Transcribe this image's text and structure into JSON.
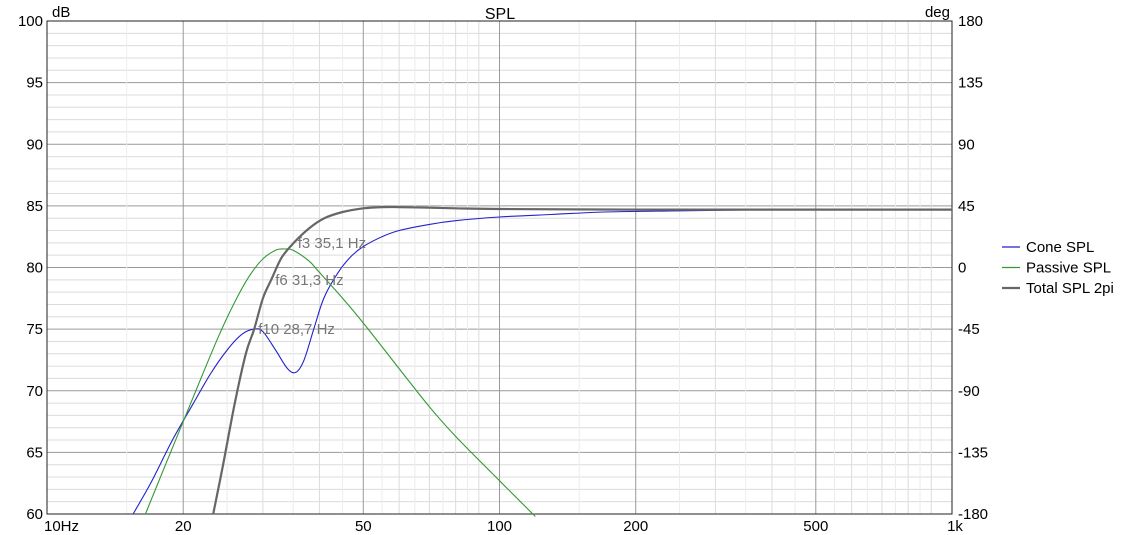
{
  "chart_data": {
    "type": "line",
    "title": "SPL",
    "ylabel_left": "dB",
    "ylabel_right": "deg",
    "x_scale": "log",
    "xlim": [
      10,
      1000
    ],
    "ylim": [
      60,
      100
    ],
    "ylim_right": [
      -180,
      180
    ],
    "x_ticks": [
      {
        "value": 10,
        "label": "10Hz"
      },
      {
        "value": 20,
        "label": "20"
      },
      {
        "value": 50,
        "label": "50"
      },
      {
        "value": 100,
        "label": "100"
      },
      {
        "value": 200,
        "label": "200"
      },
      {
        "value": 500,
        "label": "500"
      },
      {
        "value": 1000,
        "label": "1k"
      }
    ],
    "y_ticks_left": [
      "60",
      "65",
      "70",
      "75",
      "80",
      "85",
      "90",
      "95",
      "100"
    ],
    "y_ticks_right": [
      "-180",
      "-135",
      "-90",
      "-45",
      "0",
      "45",
      "90",
      "135",
      "180"
    ],
    "grid": true,
    "legend_position": "right",
    "series": [
      {
        "name": "Cone SPL",
        "color": "#2222cc",
        "x": [
          15.5,
          17,
          19,
          21,
          23,
          25,
          27,
          28.7,
          30,
          32,
          34,
          35.5,
          37,
          39,
          41,
          44,
          47,
          50,
          55,
          60,
          70,
          80,
          100,
          130,
          170,
          250,
          400,
          700,
          1000
        ],
        "y": [
          60,
          62.6,
          66.1,
          68.9,
          71.4,
          73.3,
          74.6,
          75.0,
          74.8,
          73.3,
          71.8,
          71.5,
          72.5,
          75.2,
          77.6,
          79.6,
          80.9,
          81.7,
          82.5,
          83.0,
          83.5,
          83.8,
          84.1,
          84.3,
          84.5,
          84.6,
          84.7,
          84.7,
          84.7
        ]
      },
      {
        "name": "Passive SPL",
        "color": "#339933",
        "x": [
          16.5,
          18,
          20,
          22,
          24,
          26,
          28,
          30,
          32,
          33.5,
          35,
          38,
          40,
          45,
          50,
          60,
          70,
          80,
          100,
          120
        ],
        "y": [
          60,
          63.4,
          67.5,
          71.2,
          74.5,
          77.2,
          79.3,
          80.7,
          81.4,
          81.5,
          81.4,
          80.5,
          79.6,
          77.5,
          75.5,
          71.8,
          68.7,
          66.3,
          62.7,
          59.8
        ]
      },
      {
        "name": "Total SPL 2pi",
        "color": "#666666",
        "x": [
          23.3,
          24.5,
          26,
          27.5,
          28.7,
          30,
          31.3,
          33,
          35.1,
          38,
          41,
          45,
          50,
          55,
          60,
          70,
          80,
          100,
          200,
          500,
          1000
        ],
        "y": [
          60,
          64,
          69,
          73,
          75,
          77.5,
          79,
          80.8,
          82,
          83.2,
          84,
          84.5,
          84.8,
          84.9,
          84.9,
          84.85,
          84.8,
          84.75,
          84.7,
          84.7,
          84.7
        ]
      }
    ],
    "annotations": [
      {
        "text": "f3 35,1 Hz",
        "x": 35.1,
        "y": 82
      },
      {
        "text": "f6 31,3 Hz",
        "x": 31.3,
        "y": 79
      },
      {
        "text": "f10 28,7 Hz",
        "x": 28.7,
        "y": 75
      }
    ]
  }
}
